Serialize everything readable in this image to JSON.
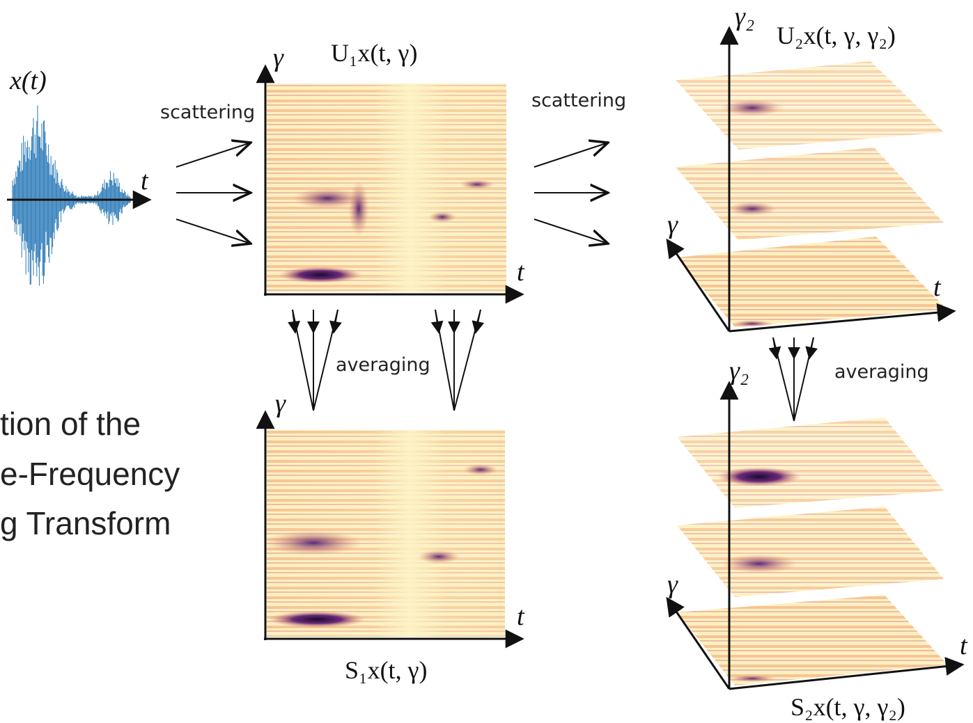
{
  "signal": {
    "label": "x(t)",
    "t_axis": "t"
  },
  "first_order": {
    "scattering_label": "scattering",
    "averaging_label": "averaging",
    "u1": {
      "title": "U₁x(t, γ)",
      "y_axis": "γ",
      "x_axis": "t"
    },
    "s1": {
      "title": "S₁x(t, γ)",
      "y_axis": "γ",
      "x_axis": "t"
    }
  },
  "second_order": {
    "scattering_label": "scattering",
    "averaging_label": "averaging",
    "u2": {
      "title": "U₂x(t, γ, γ₂)",
      "z_axis": "γ₂",
      "y_axis": "γ",
      "x_axis": "t"
    },
    "s2": {
      "title": "S₂x(t, γ, γ₂)",
      "z_axis": "γ₂",
      "y_axis": "γ",
      "x_axis": "t"
    }
  },
  "caption_lines": [
    "tion of the",
    "e-Frequency",
    "g Transform"
  ]
}
